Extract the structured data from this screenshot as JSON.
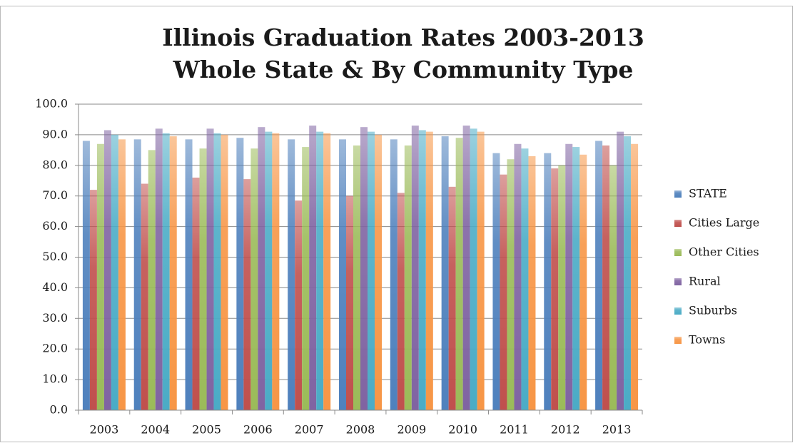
{
  "chart_data": {
    "type": "bar",
    "title": "Illinois Graduation Rates 2003-2013",
    "subtitle": "Whole State & By Community Type",
    "categories": [
      "2003",
      "2004",
      "2005",
      "2006",
      "2007",
      "2008",
      "2009",
      "2010",
      "2011",
      "2012",
      "2013"
    ],
    "series": [
      {
        "name": "STATE",
        "color": "#4f81bd",
        "values": [
          88,
          88.5,
          88.5,
          89,
          88.5,
          88.5,
          88.5,
          89.5,
          84,
          84,
          88
        ]
      },
      {
        "name": "Cities Large",
        "color": "#c0504d",
        "values": [
          72,
          74,
          76,
          75.5,
          68.5,
          70,
          71,
          73,
          77,
          79,
          86.5
        ]
      },
      {
        "name": "Other Cities",
        "color": "#9bbb59",
        "values": [
          87,
          85,
          85.5,
          85.5,
          86,
          86.5,
          86.5,
          89,
          82,
          80,
          80
        ]
      },
      {
        "name": "Rural",
        "color": "#8064a2",
        "values": [
          91.5,
          92,
          92,
          92.5,
          93,
          92.5,
          93,
          93,
          87,
          87,
          91
        ]
      },
      {
        "name": "Suburbs",
        "color": "#4bacc6",
        "values": [
          90,
          90.5,
          90.5,
          91,
          91,
          91,
          91.5,
          92,
          85.5,
          86,
          89.5
        ]
      },
      {
        "name": "Towns",
        "color": "#f79646",
        "values": [
          88.5,
          89.5,
          90,
          90.5,
          90.5,
          90,
          91,
          91,
          83,
          83.5,
          87
        ]
      }
    ],
    "ylim": [
      0,
      100
    ],
    "yticks": [
      {
        "value": 0,
        "label": "0.0"
      },
      {
        "value": 10,
        "label": "10.0"
      },
      {
        "value": 20,
        "label": "20.0"
      },
      {
        "value": 30,
        "label": "30.0"
      },
      {
        "value": 40,
        "label": "40.0"
      },
      {
        "value": 50,
        "label": "50.0"
      },
      {
        "value": 60,
        "label": "60.0"
      },
      {
        "value": 70,
        "label": "70.0"
      },
      {
        "value": 80,
        "label": "80.0"
      },
      {
        "value": 90,
        "label": "90.0"
      },
      {
        "value": 100,
        "label": "100.0"
      }
    ],
    "grid": true,
    "legend": "right"
  }
}
